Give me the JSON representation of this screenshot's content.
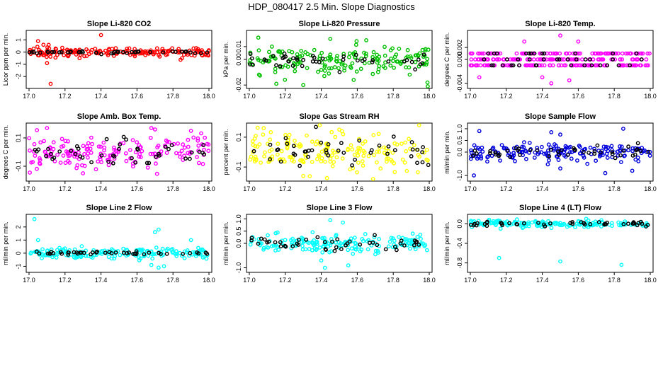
{
  "figure": {
    "title": "HDP_080417  2.5 Min. Slope Diagnostics",
    "background": "#ffffff",
    "reference_color": "#000000"
  },
  "chart_data": [
    {
      "type": "scatter",
      "title": "Slope Li-820 CO2",
      "ylabel": "Licor ppm per min.",
      "color": "#ff0000",
      "xlim": [
        17.0,
        18.0
      ],
      "ylim": [
        -2.8,
        1.6
      ],
      "xticks": [
        "17.0",
        "17.2",
        "17.4",
        "17.6",
        "17.8",
        "18.0"
      ],
      "yticks": [
        {
          "v": -2,
          "label": "-2"
        },
        {
          "v": -1,
          "label": "-1"
        },
        {
          "v": 0,
          "label": "0"
        },
        {
          "v": 1,
          "label": "1"
        }
      ],
      "spread": 0.18,
      "ref_spread": 0.05,
      "outliers": [
        [
          17.05,
          0.9
        ],
        [
          17.1,
          -0.9
        ],
        [
          17.12,
          -2.6
        ],
        [
          17.4,
          1.4
        ],
        [
          17.08,
          0.6
        ],
        [
          17.85,
          -0.5
        ]
      ]
    },
    {
      "type": "scatter",
      "title": "Slope Li-820 Pressure",
      "ylabel": "kPa per min.",
      "color": "#00c000",
      "xlim": [
        17.0,
        18.0
      ],
      "ylim": [
        -0.021,
        0.021
      ],
      "xticks": [
        "17.0",
        "17.2",
        "17.4",
        "17.6",
        "17.8",
        "18.0"
      ],
      "yticks": [
        {
          "v": -0.02,
          "label": "-0.02"
        },
        {
          "v": 0.0,
          "label": "0.00"
        },
        {
          "v": 0.01,
          "label": "0.01"
        }
      ],
      "spread": 0.006,
      "ref_spread": 0.003,
      "outliers": [
        [
          17.3,
          -0.02
        ],
        [
          17.15,
          -0.019
        ],
        [
          17.58,
          -0.016
        ],
        [
          17.99,
          -0.018
        ],
        [
          17.45,
          0.016
        ],
        [
          17.05,
          0.017
        ],
        [
          17.65,
          0.015
        ]
      ]
    },
    {
      "type": "scatter",
      "title": "Slope Li-820 Temp.",
      "ylabel": "degrees C per min.",
      "color": "#ff00ff",
      "xlim": [
        17.0,
        18.0
      ],
      "ylim": [
        -0.0045,
        0.0045
      ],
      "xticks": [
        "17.0",
        "17.2",
        "17.4",
        "17.6",
        "17.8",
        "18.0"
      ],
      "yticks": [
        {
          "v": -0.004,
          "label": "-0.004"
        },
        {
          "v": 0.0,
          "label": "0.000"
        },
        {
          "v": 0.002,
          "label": "0.002"
        }
      ],
      "levels": [
        -0.001,
        0.0,
        0.001
      ],
      "spread": 0.001,
      "outliers": [
        [
          17.45,
          -0.004
        ],
        [
          17.5,
          0.004
        ],
        [
          17.55,
          -0.0035
        ],
        [
          17.6,
          0.003
        ],
        [
          17.4,
          -0.003
        ],
        [
          17.05,
          -0.003
        ],
        [
          17.3,
          0.003
        ]
      ]
    },
    {
      "type": "scatter",
      "title": "Slope Amb. Box Temp.",
      "ylabel": "degrees C per min.",
      "color": "#ff00ff",
      "xlim": [
        17.0,
        18.0
      ],
      "ylim": [
        -0.19,
        0.19
      ],
      "xticks": [
        "17.0",
        "17.2",
        "17.4",
        "17.6",
        "17.8",
        "18.0"
      ],
      "yticks": [
        {
          "v": -0.1,
          "label": "-0.1"
        },
        {
          "v": 0.1,
          "label": "0.1"
        }
      ],
      "spread": 0.06,
      "ref_spread": 0.05,
      "outliers": [
        [
          17.7,
          0.16
        ],
        [
          17.68,
          0.17
        ],
        [
          17.9,
          0.15
        ],
        [
          17.1,
          0.17
        ],
        [
          17.3,
          -0.15
        ]
      ]
    },
    {
      "type": "scatter",
      "title": "Slope Gas Stream RH",
      "ylabel": "percent per min.",
      "color": "#ffff00",
      "xlim": [
        17.0,
        18.0
      ],
      "ylim": [
        -0.18,
        0.18
      ],
      "xticks": [
        "17.0",
        "17.2",
        "17.4",
        "17.6",
        "17.8",
        "18.0"
      ],
      "yticks": [
        {
          "v": -0.1,
          "label": "-0.1"
        },
        {
          "v": 0.1,
          "label": "0.1"
        }
      ],
      "spread": 0.06,
      "ref_spread": 0.05,
      "outliers": [
        [
          17.08,
          0.16
        ],
        [
          17.3,
          -0.16
        ],
        [
          17.5,
          0.15
        ]
      ]
    },
    {
      "type": "scatter",
      "title": "Slope Sample Flow",
      "ylabel": "ml/min per min.",
      "color": "#0000dd",
      "xlim": [
        17.0,
        18.0
      ],
      "ylim": [
        -1.15,
        1.15
      ],
      "xticks": [
        "17.0",
        "17.2",
        "17.4",
        "17.6",
        "17.8",
        "18.0"
      ],
      "yticks": [
        {
          "v": -1.0,
          "label": "-1.0"
        },
        {
          "v": 0.0,
          "label": "0.0"
        },
        {
          "v": 0.5,
          "label": "0.5"
        },
        {
          "v": 1.0,
          "label": "1.0"
        }
      ],
      "spread": 0.18,
      "ref_spread": 0.12,
      "outliers": [
        [
          17.05,
          0.9
        ],
        [
          17.45,
          0.85
        ],
        [
          17.5,
          0.75
        ],
        [
          17.85,
          1.0
        ],
        [
          17.02,
          -1.0
        ],
        [
          17.5,
          -0.7
        ],
        [
          17.75,
          -0.9
        ],
        [
          17.9,
          -0.8
        ]
      ]
    },
    {
      "type": "scatter",
      "title": "Slope Line 2 Flow",
      "ylabel": "ml/min per min.",
      "color": "#00ffff",
      "xlim": [
        17.0,
        18.0
      ],
      "ylim": [
        -1.3,
        2.8
      ],
      "xticks": [
        "17.0",
        "17.2",
        "17.4",
        "17.6",
        "17.8",
        "18.0"
      ],
      "yticks": [
        {
          "v": -1,
          "label": "-1"
        },
        {
          "v": 0,
          "label": "0"
        },
        {
          "v": 1,
          "label": "1"
        },
        {
          "v": 2,
          "label": "2"
        }
      ],
      "spread": 0.22,
      "ref_spread": 0.06,
      "outliers": [
        [
          17.03,
          2.6
        ],
        [
          17.7,
          1.6
        ],
        [
          17.72,
          1.8
        ],
        [
          17.72,
          -1.1
        ],
        [
          17.68,
          -0.9
        ],
        [
          17.75,
          -1.0
        ],
        [
          17.9,
          1.0
        ],
        [
          17.05,
          1.0
        ]
      ]
    },
    {
      "type": "scatter",
      "title": "Slope Line 3 Flow",
      "ylabel": "ml/min per min.",
      "color": "#00ffff",
      "xlim": [
        17.0,
        18.0
      ],
      "ylim": [
        -1.1,
        1.1
      ],
      "xticks": [
        "17.0",
        "17.2",
        "17.4",
        "17.6",
        "17.8",
        "18.0"
      ],
      "yticks": [
        {
          "v": -1.0,
          "label": "-1.0"
        },
        {
          "v": 0.0,
          "label": "0.0"
        },
        {
          "v": 0.5,
          "label": "0.5"
        },
        {
          "v": 1.0,
          "label": "1.0"
        }
      ],
      "spread": 0.2,
      "ref_spread": 0.15,
      "outliers": [
        [
          17.45,
          0.95
        ],
        [
          17.42,
          -1.0
        ],
        [
          17.4,
          -0.7
        ],
        [
          17.52,
          0.85
        ],
        [
          17.55,
          -0.9
        ]
      ]
    },
    {
      "type": "scatter",
      "title": "Slope Line 4 (LT) Flow",
      "ylabel": "ml/min per min.",
      "color": "#00ffff",
      "xlim": [
        17.0,
        18.0
      ],
      "ylim": [
        -0.95,
        0.15
      ],
      "xticks": [
        "17.0",
        "17.2",
        "17.4",
        "17.6",
        "17.8",
        "18.0"
      ],
      "yticks": [
        {
          "v": -0.8,
          "label": "-0.8"
        },
        {
          "v": -0.4,
          "label": "-0.4"
        },
        {
          "v": 0.0,
          "label": "0.0"
        }
      ],
      "spread": 0.035,
      "ref_spread": 0.025,
      "outliers": [
        [
          17.16,
          -0.7
        ],
        [
          17.5,
          -0.77
        ],
        [
          17.84,
          -0.84
        ]
      ]
    }
  ]
}
